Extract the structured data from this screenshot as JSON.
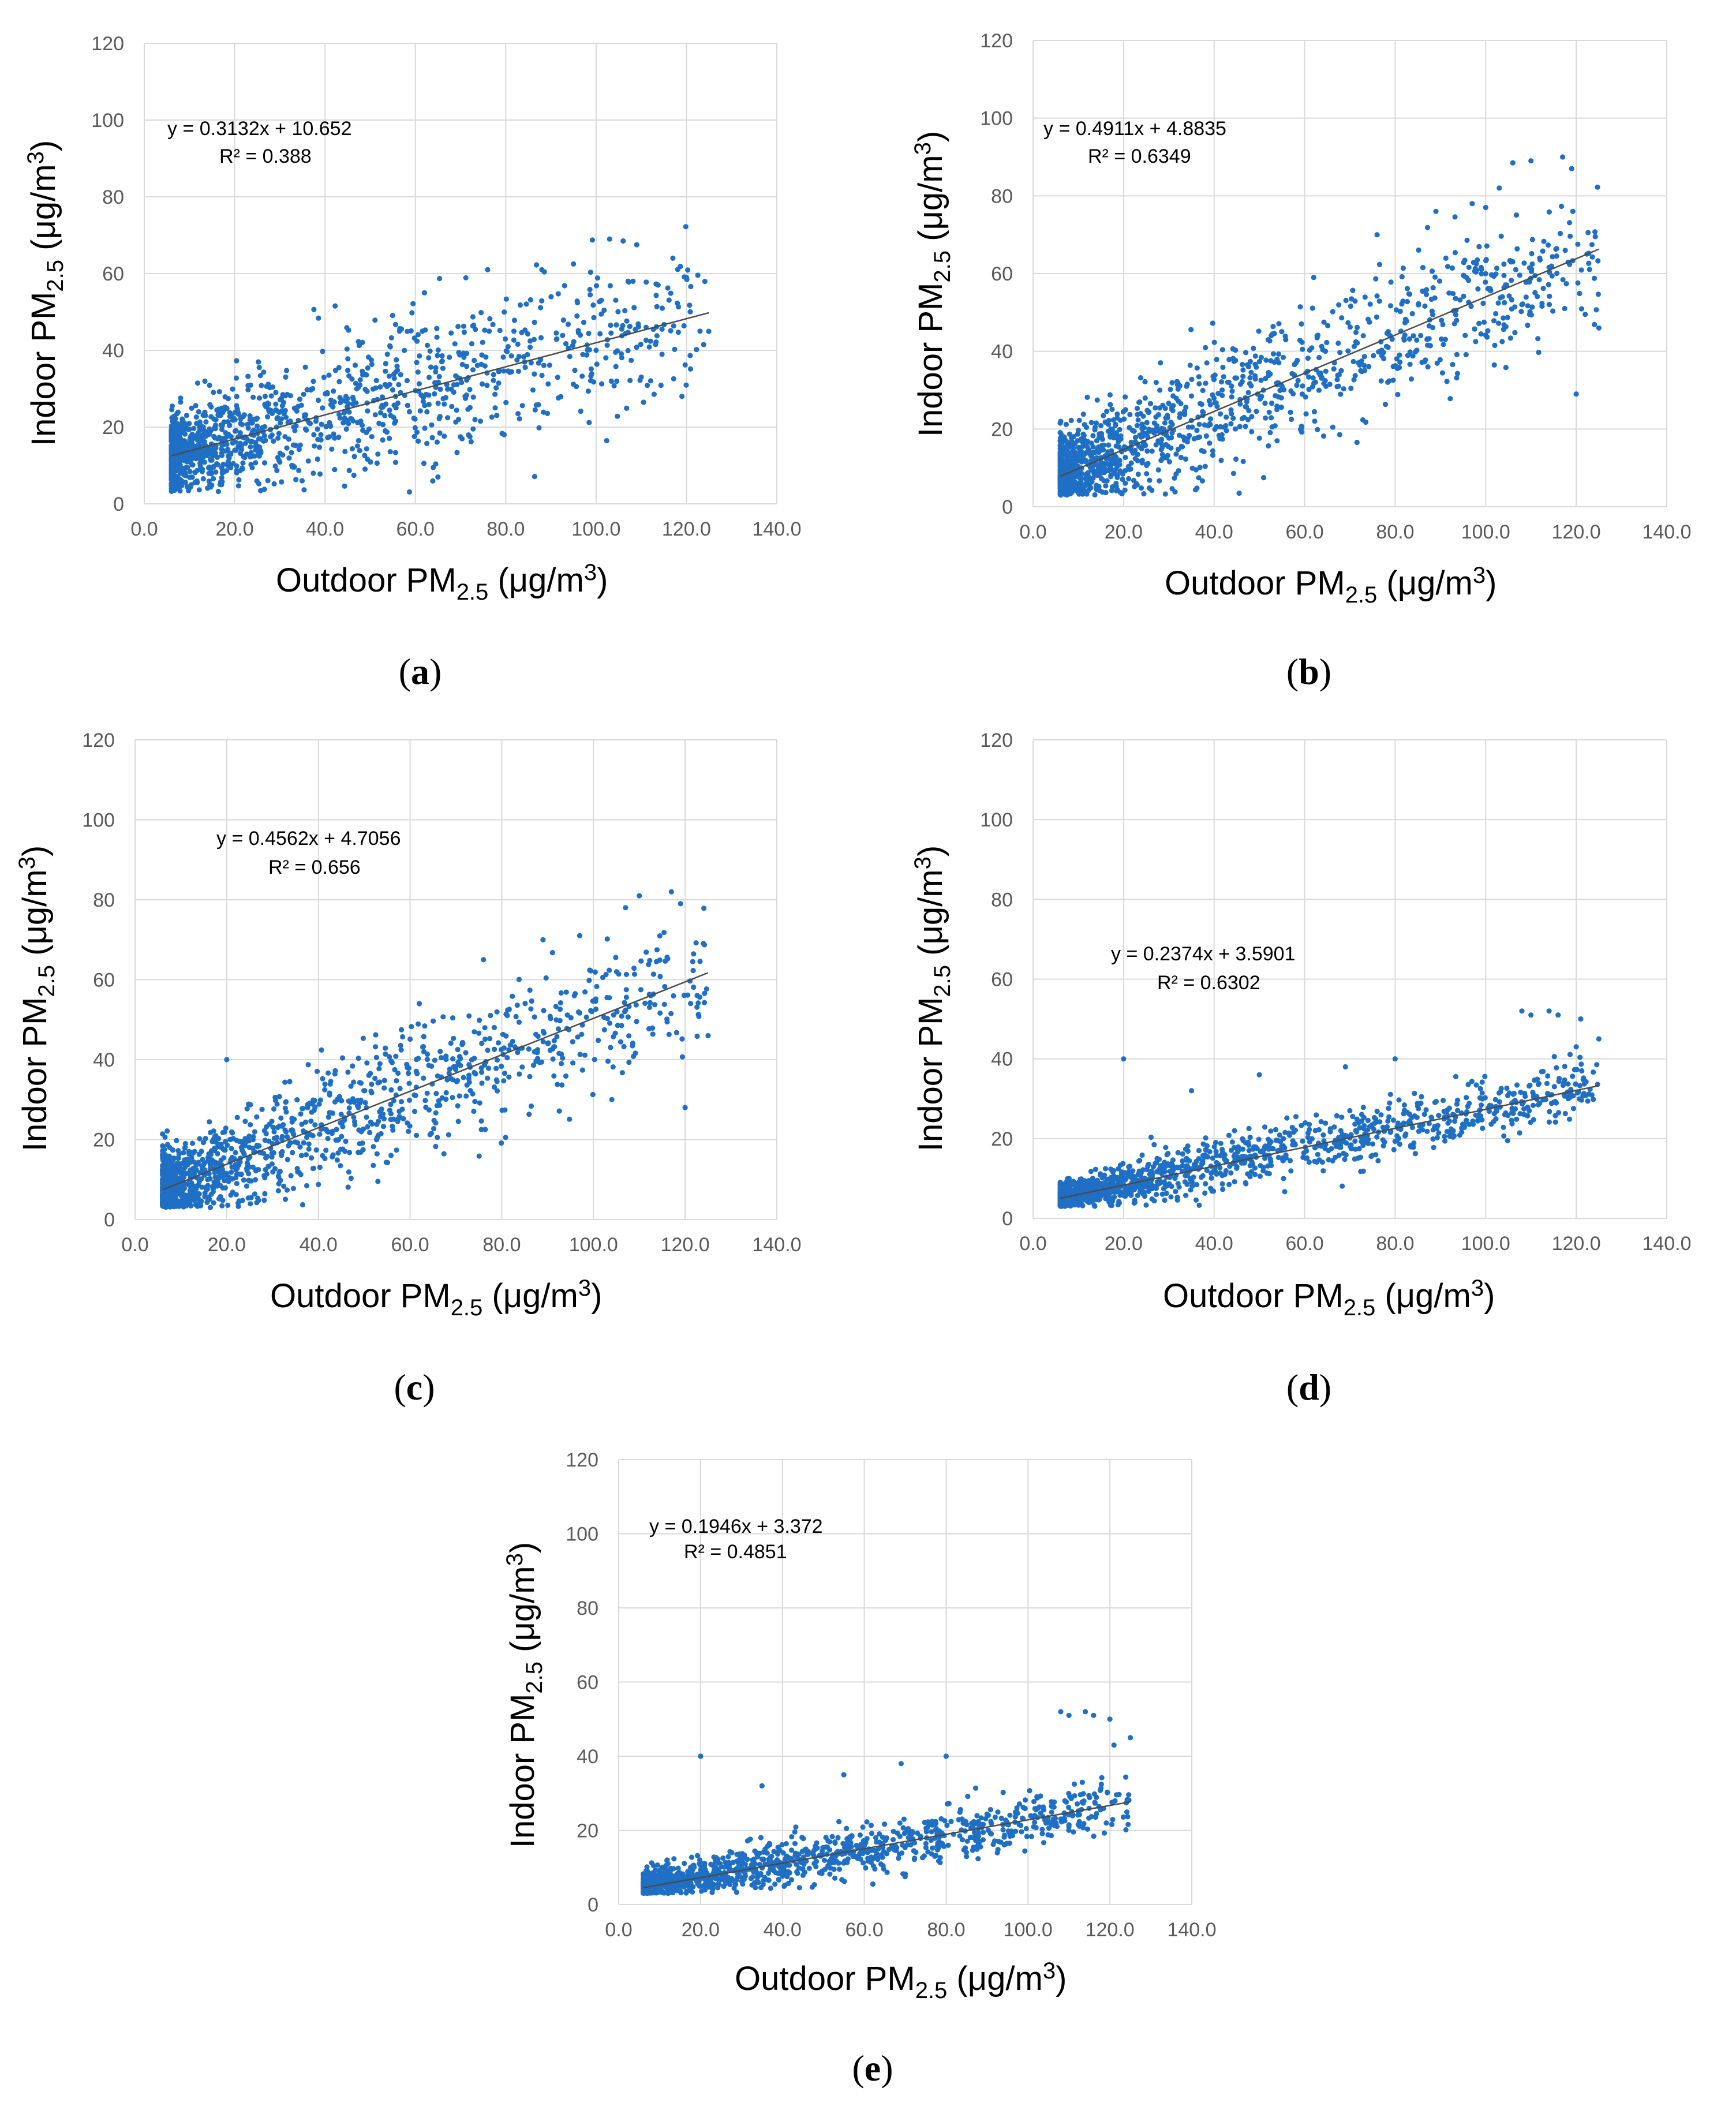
{
  "colors": {
    "points": "#1f6fc5",
    "trendline": "#4a4a4a",
    "grid": "#d9d9d9",
    "ticks": "#595959"
  },
  "chart_data": [
    {
      "type": "scatter",
      "panel": "(a)",
      "panel_letter": "a",
      "xlabel": "Outdoor PM2.5 (μg/m3)",
      "ylabel": "Indoor PM2.5 (μg/m3)",
      "xlim": [
        0,
        140
      ],
      "ylim": [
        0,
        120
      ],
      "xticks": [
        "0.0",
        "20.0",
        "40.0",
        "60.0",
        "80.0",
        "100.0",
        "120.0",
        "140.0"
      ],
      "yticks": [
        "0",
        "20",
        "40",
        "60",
        "80",
        "100",
        "120"
      ],
      "equation": "y = 0.3132x + 10.652",
      "r2": "R² = 0.388",
      "slope": 0.3132,
      "intercept": 10.652,
      "r2_value": 0.388,
      "trend_x": [
        6,
        125
      ],
      "cluster": {
        "x_min": 6,
        "x_max": 125,
        "noise": 10.0,
        "count": 1400
      },
      "outliers": [
        [
          103,
          69
        ],
        [
          106,
          68.5
        ],
        [
          109,
          67.5
        ],
        [
          117,
          64
        ],
        [
          88,
          61
        ],
        [
          76,
          61
        ],
        [
          95,
          62.5
        ],
        [
          120,
          59
        ],
        [
          119,
          28
        ],
        [
          123,
          45
        ],
        [
          110,
          33
        ],
        [
          100,
          40
        ],
        [
          62,
          55
        ]
      ]
    },
    {
      "type": "scatter",
      "panel": "(b)",
      "panel_letter": "b",
      "xlabel": "Outdoor PM2.5 (μg/m3)",
      "ylabel": "Indoor PM2.5 (μg/m3)",
      "xlim": [
        0,
        140
      ],
      "ylim": [
        0,
        120
      ],
      "xticks": [
        "0.0",
        "20.0",
        "40.0",
        "60.0",
        "80.0",
        "100.0",
        "120.0",
        "140.0"
      ],
      "yticks": [
        "0",
        "20",
        "40",
        "60",
        "80",
        "100",
        "120"
      ],
      "equation": "y = 0.4911x + 4.8835",
      "r2": "R² = 0.6349",
      "slope": 0.4911,
      "intercept": 4.8835,
      "r2_value": 0.6349,
      "trend_x": [
        6,
        125
      ],
      "cluster": {
        "x_min": 6,
        "x_max": 125,
        "noise": 9.0,
        "count": 1400
      },
      "outliers": [
        [
          117,
          90
        ],
        [
          106,
          88.5
        ],
        [
          110,
          89
        ],
        [
          119,
          87
        ],
        [
          97,
          78
        ],
        [
          103,
          82
        ],
        [
          89,
          76
        ],
        [
          100,
          77
        ],
        [
          125,
          46
        ],
        [
          120,
          29
        ],
        [
          76,
          70
        ],
        [
          108,
          52
        ],
        [
          62,
          59
        ]
      ]
    },
    {
      "type": "scatter",
      "panel": "(c)",
      "panel_letter": "c",
      "xlabel": "Outdoor PM2.5 (μg/m3)",
      "ylabel": "Indoor PM2.5 (μg/m3)",
      "xlim": [
        0,
        140
      ],
      "ylim": [
        0,
        120
      ],
      "xticks": [
        "0.0",
        "20.0",
        "40.0",
        "60.0",
        "80.0",
        "100.0",
        "120.0",
        "140.0"
      ],
      "yticks": [
        "0",
        "20",
        "40",
        "60",
        "80",
        "100",
        "120"
      ],
      "equation": "y = 0.4562x + 4.7056",
      "r2": "R² = 0.656",
      "slope": 0.4562,
      "intercept": 4.7056,
      "r2_value": 0.656,
      "trend_x": [
        6,
        125
      ],
      "cluster": {
        "x_min": 6,
        "x_max": 125,
        "noise": 8.0,
        "count": 1400
      },
      "outliers": [
        [
          117,
          82
        ],
        [
          110,
          81
        ],
        [
          107,
          78
        ],
        [
          119,
          79
        ],
        [
          97,
          71
        ],
        [
          89,
          70
        ],
        [
          76,
          65
        ],
        [
          125,
          46
        ],
        [
          120,
          28
        ],
        [
          104,
          30
        ],
        [
          62,
          54
        ],
        [
          20,
          40
        ]
      ]
    },
    {
      "type": "scatter",
      "panel": "(d)",
      "panel_letter": "d",
      "xlabel": "Outdoor PM2.5 (μg/m3)",
      "ylabel": "Indoor PM2.5 (μg/m3)",
      "xlim": [
        0,
        140
      ],
      "ylim": [
        0,
        120
      ],
      "xticks": [
        "0.0",
        "20.0",
        "40.0",
        "60.0",
        "80.0",
        "100.0",
        "120.0",
        "140.0"
      ],
      "yticks": [
        "0",
        "20",
        "40",
        "60",
        "80",
        "100",
        "120"
      ],
      "equation": "y = 0.2374x + 3.5901",
      "r2": "R² = 0.6302",
      "slope": 0.2374,
      "intercept": 3.5901,
      "r2_value": 0.6302,
      "trend_x": [
        6,
        125
      ],
      "cluster": {
        "x_min": 6,
        "x_max": 125,
        "noise": 3.5,
        "count": 1400
      },
      "outliers": [
        [
          108,
          52
        ],
        [
          110,
          51
        ],
        [
          114,
          52
        ],
        [
          116,
          51
        ],
        [
          121,
          50
        ],
        [
          125,
          45
        ],
        [
          120,
          43
        ],
        [
          20,
          40
        ],
        [
          80,
          40
        ],
        [
          69,
          38
        ],
        [
          35,
          32
        ],
        [
          50,
          36
        ]
      ]
    },
    {
      "type": "scatter",
      "panel": "(e)",
      "panel_letter": "e",
      "xlabel": "Outdoor PM2.5 (μg/m3)",
      "ylabel": "Indoor PM2.5 (μg/m3)",
      "xlim": [
        0,
        140
      ],
      "ylim": [
        0,
        120
      ],
      "xticks": [
        "0.0",
        "20.0",
        "40.0",
        "60.0",
        "80.0",
        "100.0",
        "120.0",
        "140.0"
      ],
      "yticks": [
        "0",
        "20",
        "40",
        "60",
        "80",
        "100",
        "120"
      ],
      "equation": "y = 0.1946x + 3.372",
      "r2": "R² = 0.4851",
      "slope": 0.1946,
      "intercept": 3.372,
      "r2_value": 0.4851,
      "trend_x": [
        6,
        125
      ],
      "cluster": {
        "x_min": 6,
        "x_max": 125,
        "noise": 3.5,
        "count": 1400
      },
      "outliers": [
        [
          108,
          52
        ],
        [
          110,
          51
        ],
        [
          114,
          52
        ],
        [
          116,
          51
        ],
        [
          120,
          50
        ],
        [
          125,
          45
        ],
        [
          121,
          43
        ],
        [
          20,
          40
        ],
        [
          80,
          40
        ],
        [
          69,
          38
        ],
        [
          35,
          32
        ],
        [
          55,
          35
        ]
      ]
    }
  ]
}
